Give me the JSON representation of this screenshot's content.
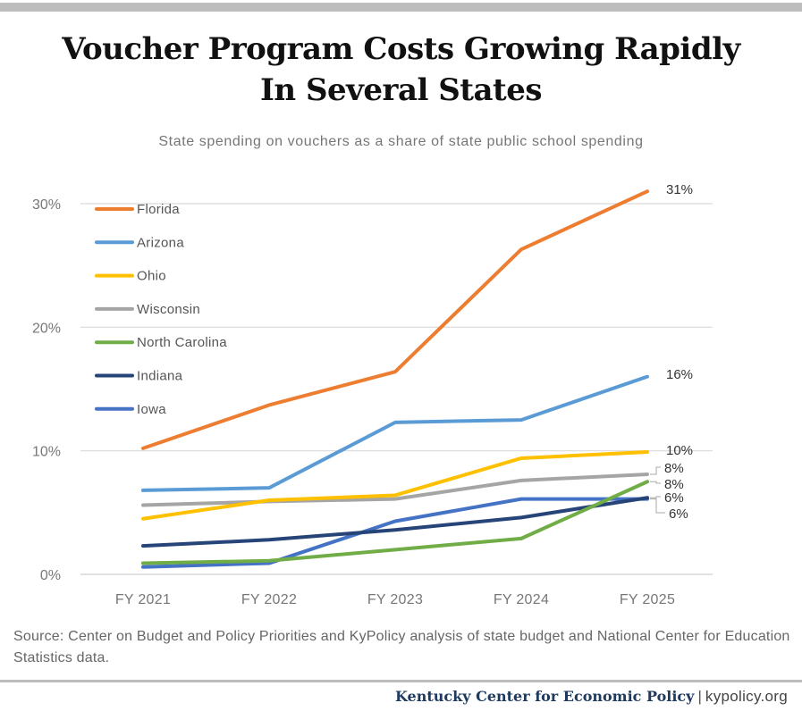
{
  "header": {
    "title_line1": "Voucher Program Costs Growing Rapidly",
    "title_line2": "In Several States",
    "subtitle": "State spending on vouchers as a share of state public school spending"
  },
  "chart_data": {
    "type": "line",
    "title": "Voucher Program Costs Growing Rapidly In Several States",
    "subtitle": "State spending on vouchers as a share of state public school spending",
    "xlabel": "",
    "ylabel": "",
    "categories": [
      "FY 2021",
      "FY 2022",
      "FY 2023",
      "FY 2024",
      "FY 2025"
    ],
    "ylim": [
      0,
      30
    ],
    "yticks": [
      0,
      10,
      20,
      30
    ],
    "ytick_labels": [
      "0%",
      "10%",
      "20%",
      "30%"
    ],
    "grid": "horizontal",
    "legend_position": "top-left",
    "series": [
      {
        "name": "Florida",
        "color": "#ED7D31",
        "values": [
          10.2,
          13.7,
          16.4,
          26.3,
          31.0
        ],
        "end_label": "31%"
      },
      {
        "name": "Arizona",
        "color": "#5B9BD5",
        "values": [
          6.8,
          7.0,
          12.3,
          12.5,
          16.0
        ],
        "end_label": "16%"
      },
      {
        "name": "Ohio",
        "color": "#FFC000",
        "values": [
          4.5,
          6.0,
          6.4,
          9.4,
          9.9
        ],
        "end_label": "10%"
      },
      {
        "name": "Wisconsin",
        "color": "#A5A5A5",
        "values": [
          5.6,
          5.9,
          6.1,
          7.6,
          8.1
        ],
        "end_label": "8%"
      },
      {
        "name": "North Carolina",
        "color": "#70AD47",
        "values": [
          0.9,
          1.1,
          2.0,
          2.9,
          7.5
        ],
        "end_label": "8%"
      },
      {
        "name": "Indiana",
        "color": "#264478",
        "values": [
          2.3,
          2.8,
          3.6,
          4.6,
          6.2
        ],
        "end_label": "6%"
      },
      {
        "name": "Iowa",
        "color": "#4472C4",
        "values": [
          0.6,
          0.9,
          4.3,
          6.1,
          6.1
        ],
        "end_label": "6%"
      }
    ]
  },
  "source": "Source: Center on Budget and Policy Priorities and KyPolicy analysis of state budget and National Center for Education Statistics data.",
  "footer": {
    "org": "Kentucky Center for Economic Policy",
    "separator": "|",
    "url": "kypolicy.org"
  }
}
